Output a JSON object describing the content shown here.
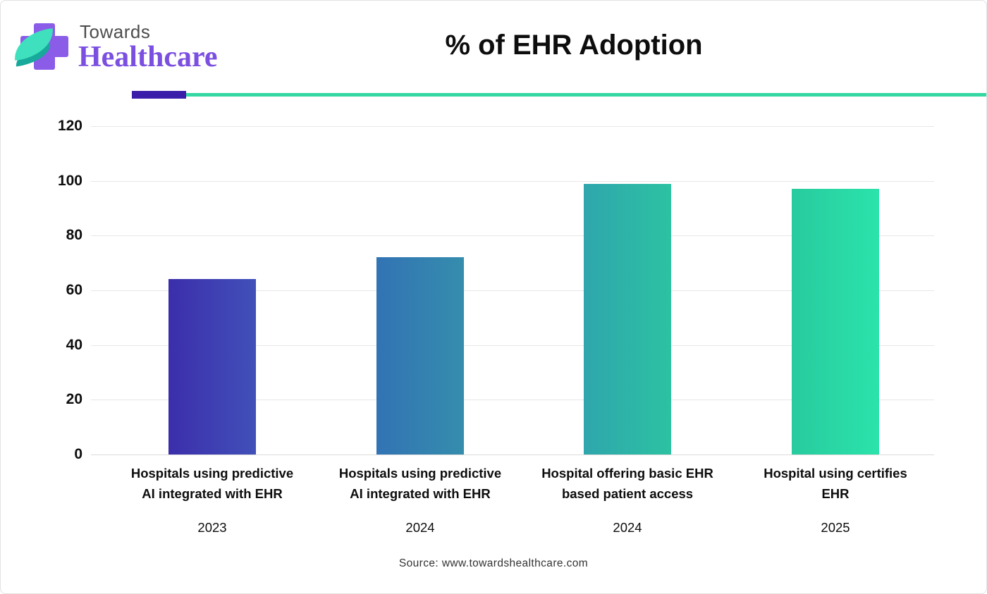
{
  "logo": {
    "line1": "Towards",
    "line2": "Healthcare"
  },
  "chart_data": {
    "type": "bar",
    "title": "% of EHR Adoption",
    "categories": [
      "Hospitals using predictive\nAI integrated with EHR",
      "Hospitals using predictive\nAI integrated with EHR",
      "Hospital offering basic EHR\nbased patient access",
      "Hospital using certifies\nEHR"
    ],
    "x_sub_labels": [
      "2023",
      "2024",
      "2024",
      "2025"
    ],
    "values": [
      64,
      72,
      99,
      97
    ],
    "xlabel": "",
    "ylabel": "",
    "ylim": [
      0,
      120
    ],
    "yticks": [
      0,
      20,
      40,
      60,
      80,
      100,
      120
    ],
    "grid": true,
    "legend": false,
    "bar_gradients": [
      [
        "#3c2eab",
        "#4150b9"
      ],
      [
        "#3273b4",
        "#358dad"
      ],
      [
        "#2fa6ad",
        "#2cc2a2"
      ],
      [
        "#28cb9e",
        "#2be3ab"
      ]
    ]
  },
  "footer": {
    "source": "Source: www.towardshealthcare.com"
  },
  "theme": {
    "divider_purple": "#3a1da8",
    "divider_teal": "#35d8a2",
    "logo_cross_purple": "#8a5ce8",
    "logo_leaf_teal": "#3fe0bd",
    "logo_text_gray": "#4d4d4d",
    "logo_text_purple": "#7b4fe0"
  }
}
